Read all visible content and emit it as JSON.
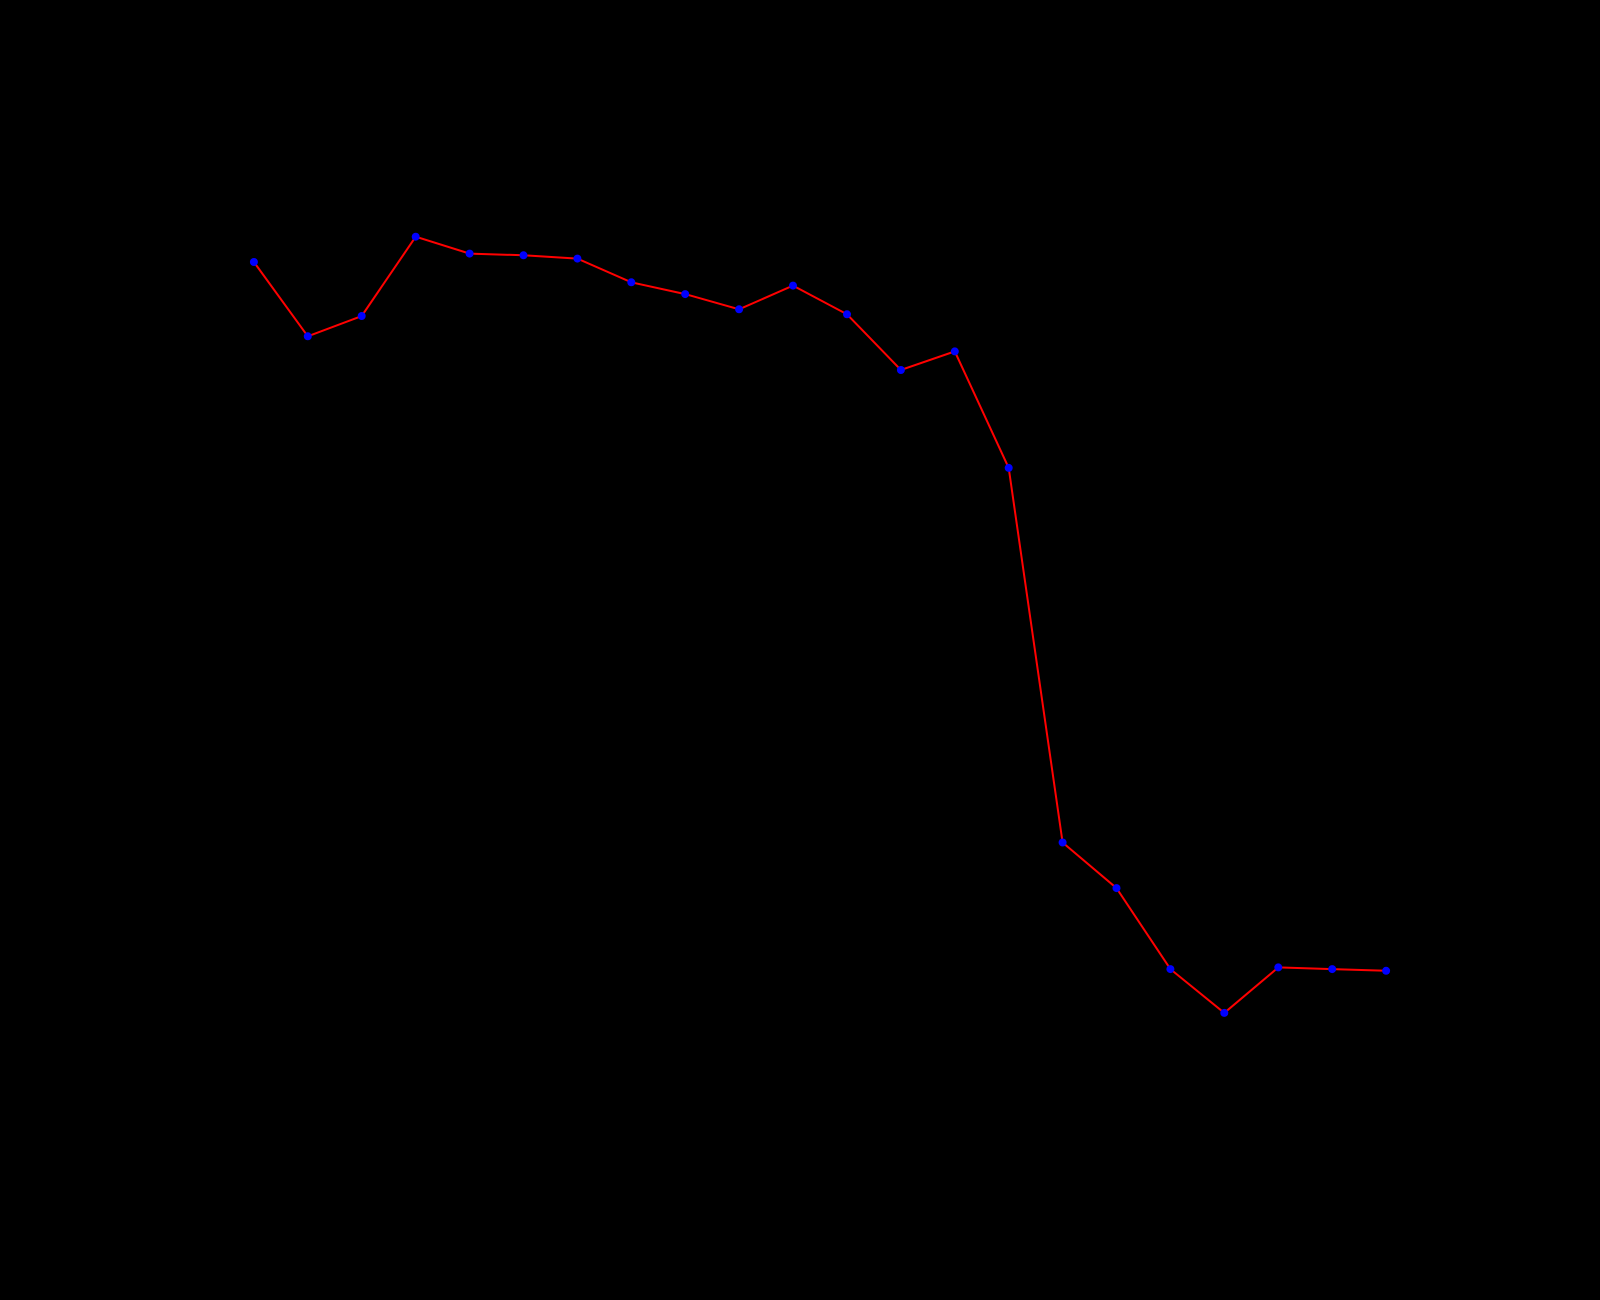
{
  "chart_data": {
    "type": "line",
    "title": "",
    "xlabel": "",
    "ylabel": "",
    "x": [
      1,
      2,
      3,
      4,
      5,
      6,
      7,
      8,
      9,
      10,
      11,
      12,
      13,
      14,
      15,
      16,
      17,
      18,
      19,
      20,
      21,
      22
    ],
    "series": [
      {
        "values": [
          58.4,
          54.0,
          55.2,
          59.9,
          58.9,
          58.8,
          58.6,
          57.2,
          56.5,
          55.6,
          57.0,
          55.3,
          52.0,
          53.1,
          46.2,
          24.0,
          21.3,
          16.5,
          13.9,
          16.6,
          16.5,
          16.4
        ],
        "line_color": "#ff0000",
        "marker_color": "#0000ff"
      }
    ],
    "xlim": [
      0,
      23
    ],
    "ylim": [
      4,
      68
    ],
    "grid": false,
    "background": "#000000"
  }
}
